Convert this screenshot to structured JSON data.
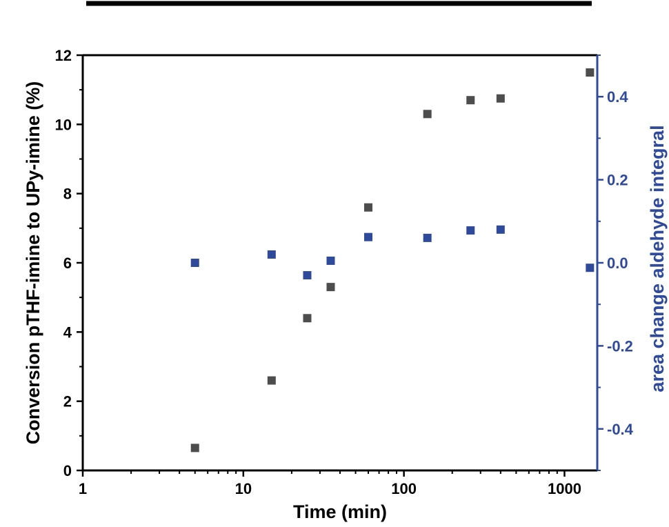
{
  "chart_data": {
    "type": "scatter",
    "title": "",
    "xlabel": "Time (min)",
    "ylabel": "Conversion pTHF-imine to UPy-imine (%)",
    "y2label": "area change aldehyde integral",
    "xscale": "log",
    "xlim": [
      1,
      1600
    ],
    "ylim": [
      0,
      12
    ],
    "y2lim": [
      -0.5,
      0.5
    ],
    "x_ticks": [
      {
        "value": 1,
        "label": "1"
      },
      {
        "value": 10,
        "label": "10"
      },
      {
        "value": 100,
        "label": "100"
      },
      {
        "value": 1000,
        "label": "1000"
      }
    ],
    "y_ticks": [
      {
        "value": 0,
        "label": "0"
      },
      {
        "value": 2,
        "label": "2"
      },
      {
        "value": 4,
        "label": "4"
      },
      {
        "value": 6,
        "label": "6"
      },
      {
        "value": 8,
        "label": "8"
      },
      {
        "value": 10,
        "label": "10"
      },
      {
        "value": 12,
        "label": "12"
      }
    ],
    "y2_ticks": [
      {
        "value": -0.4,
        "label": "-0.4"
      },
      {
        "value": -0.2,
        "label": "-0.2"
      },
      {
        "value": 0.0,
        "label": "0.0"
      },
      {
        "value": 0.2,
        "label": "0.2"
      },
      {
        "value": 0.4,
        "label": "0.4"
      }
    ],
    "grid": false,
    "legend": "none",
    "colors": {
      "left_series": "#4d4d4d",
      "right_series": "#2f4a9b",
      "right_axis": "#2f4a9b",
      "left_axis": "#000000"
    },
    "series": [
      {
        "axis": "left",
        "x": [
          5,
          15,
          25,
          35,
          60,
          140,
          260,
          400,
          1440
        ],
        "y": [
          0.65,
          2.6,
          4.4,
          5.3,
          7.6,
          10.3,
          10.7,
          10.75,
          11.5
        ]
      },
      {
        "axis": "right",
        "x": [
          5,
          15,
          25,
          35,
          60,
          140,
          260,
          400,
          1440
        ],
        "y": [
          0.0,
          0.02,
          -0.03,
          0.005,
          0.062,
          0.06,
          0.078,
          0.08,
          -0.012
        ]
      }
    ]
  }
}
